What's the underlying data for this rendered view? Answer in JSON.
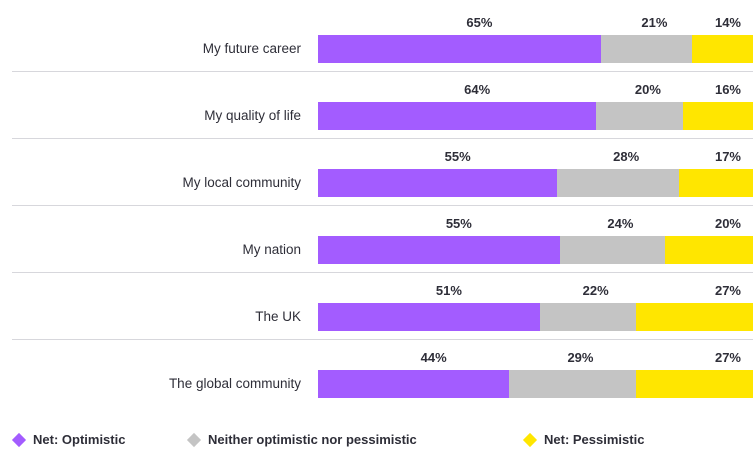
{
  "chart_data": {
    "type": "bar",
    "orientation": "horizontal",
    "stacked": true,
    "categories": [
      "My future career",
      "My quality of life",
      "My local community",
      "My nation",
      "The UK",
      "The global community"
    ],
    "series": [
      {
        "name": "Net: Optimistic",
        "color": "#a35cff",
        "values": [
          65,
          64,
          55,
          55,
          51,
          44
        ],
        "labels": [
          "65%",
          "64%",
          "55%",
          "55%",
          "51%",
          "44%"
        ]
      },
      {
        "name": "Neither optimistic nor pessimistic",
        "color": "#c4c4c4",
        "values": [
          21,
          20,
          28,
          24,
          22,
          29
        ],
        "labels": [
          "21%",
          "20%",
          "28%",
          "24%",
          "22%",
          "29%"
        ]
      },
      {
        "name": "Net: Pessimistic",
        "color": "#ffe600",
        "values": [
          14,
          16,
          17,
          20,
          27,
          27
        ],
        "labels": [
          "14%",
          "16%",
          "17%",
          "20%",
          "27%",
          "27%"
        ]
      }
    ],
    "xlim": [
      0,
      100
    ],
    "legend_position": "bottom",
    "grid": false
  },
  "legend": {
    "items": [
      {
        "label": "Net: Optimistic",
        "color": "#a35cff"
      },
      {
        "label": "Neither optimistic nor pessimistic",
        "color": "#c4c4c4"
      },
      {
        "label": "Net: Pessimistic",
        "color": "#ffe600"
      }
    ]
  }
}
